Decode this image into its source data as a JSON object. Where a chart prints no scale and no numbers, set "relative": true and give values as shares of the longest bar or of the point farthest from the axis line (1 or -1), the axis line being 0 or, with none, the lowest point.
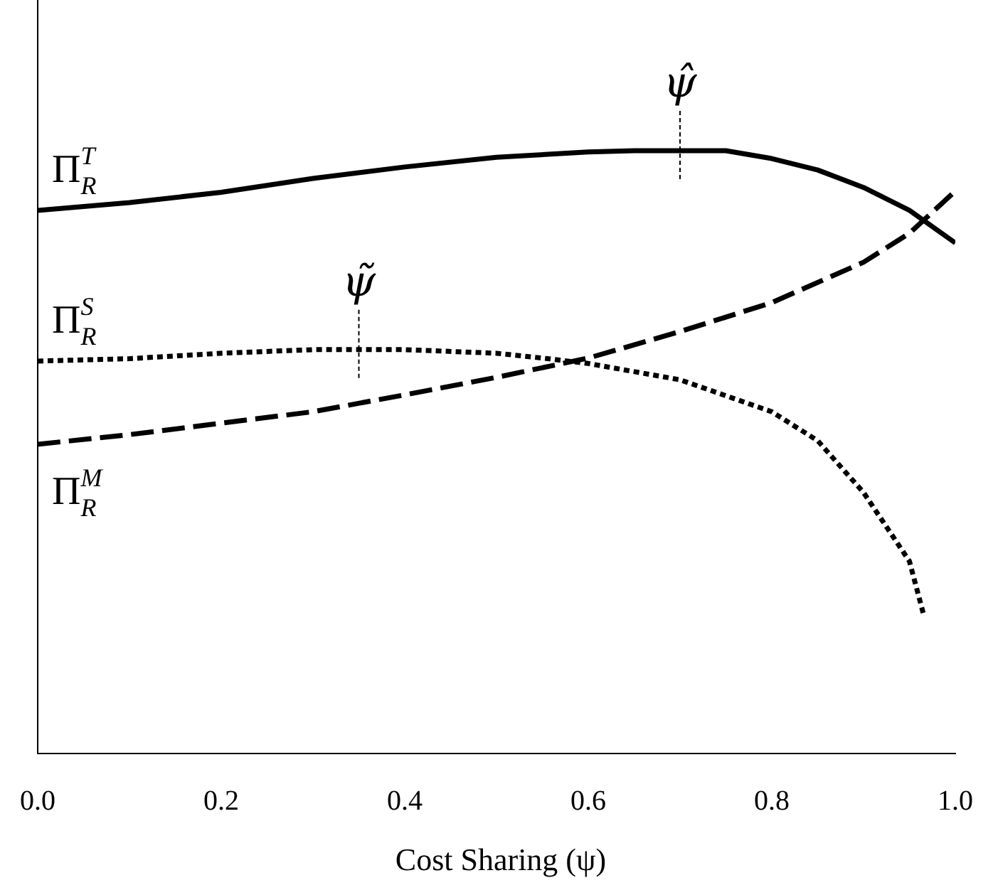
{
  "chart_data": {
    "type": "line",
    "relative": true,
    "xlabel": "Cost Sharing (ψ)",
    "xlim": [
      0,
      1
    ],
    "xticks": [
      {
        "value": 0,
        "label": "0.0"
      },
      {
        "value": 0.2,
        "label": "0.2"
      },
      {
        "value": 0.4,
        "label": "0.4"
      },
      {
        "value": 0.6,
        "label": "0.6"
      },
      {
        "value": 0.8,
        "label": "0.8"
      },
      {
        "value": 1,
        "label": "1.0"
      }
    ],
    "grid": false,
    "legend": false,
    "marker": "none",
    "series": [
      {
        "name": "Π$_{R}$$^{T}$",
        "color": "#000000",
        "line_style": "solid",
        "x": [
          0,
          0.1,
          0.2,
          0.3,
          0.4,
          0.5,
          0.6,
          0.65,
          0.75,
          0.8,
          0.85,
          0.9,
          0.95,
          1.0
        ],
        "values": [
          0.901,
          0.914,
          0.931,
          0.954,
          0.973,
          0.989,
          0.998,
          1.0,
          1.0,
          0.987,
          0.968,
          0.939,
          0.901,
          0.847
        ]
      },
      {
        "name": "Π$_{R}$$^{S}$",
        "color": "#000000",
        "line_style": "dotted",
        "x": [
          0,
          0.1,
          0.2,
          0.3,
          0.4,
          0.5,
          0.55,
          0.6,
          0.7,
          0.8,
          0.85,
          0.9,
          0.95,
          0.965
        ],
        "values": [
          0.651,
          0.655,
          0.664,
          0.67,
          0.67,
          0.664,
          0.656,
          0.647,
          0.62,
          0.567,
          0.519,
          0.433,
          0.319,
          0.233
        ]
      },
      {
        "name": "Π$_{R}$$^{M}$",
        "color": "#000000",
        "line_style": "dashed",
        "x": [
          0,
          0.1,
          0.2,
          0.3,
          0.4,
          0.5,
          0.6,
          0.7,
          0.8,
          0.9,
          0.95,
          1.0
        ],
        "values": [
          0.513,
          0.529,
          0.548,
          0.567,
          0.595,
          0.624,
          0.656,
          0.7,
          0.748,
          0.815,
          0.863,
          0.933
        ]
      }
    ],
    "annotations": [
      {
        "text": "ψ̂",
        "x": 0.7,
        "y": 1.0
      },
      {
        "text": "ψ̃",
        "x": 0.35,
        "y": 0.67
      }
    ]
  }
}
